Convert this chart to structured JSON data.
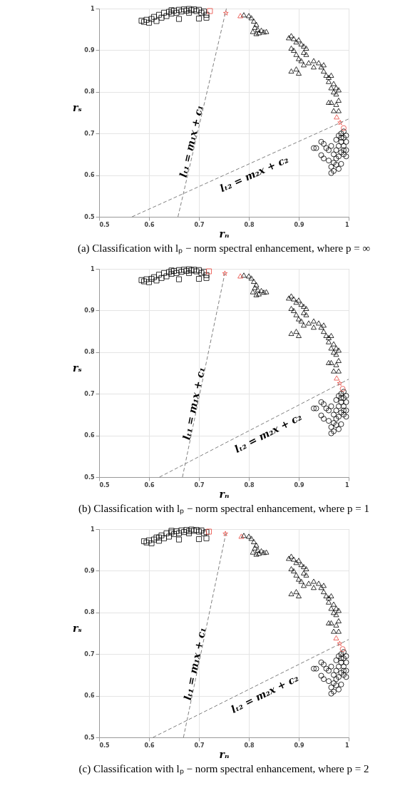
{
  "chart_data": [
    {
      "type": "scatter",
      "title": "(a) Classification with lₚ − norm spectral enhancement, where p = ∞",
      "xlabel": "rₙ",
      "ylabel": "rₛ",
      "xlim": [
        0.5,
        1
      ],
      "ylim": [
        0.5,
        1
      ],
      "xticks": [
        0.5,
        0.6,
        0.7,
        0.8,
        0.9,
        1
      ],
      "yticks": [
        0.5,
        0.6,
        0.7,
        0.8,
        0.9,
        1
      ],
      "grid": true,
      "annotations": [
        "lₜ₁ = m₁x + c₁",
        "lₜ₂ = m₂x + c₂"
      ],
      "series": [
        {
          "type": "scatter",
          "marker": "square",
          "color": "#000000",
          "x": [
            0.585,
            0.59,
            0.595,
            0.6,
            0.605,
            0.61,
            0.615,
            0.62,
            0.625,
            0.63,
            0.635,
            0.64,
            0.645,
            0.65,
            0.655,
            0.66,
            0.665,
            0.67,
            0.675,
            0.68,
            0.685,
            0.69,
            0.695,
            0.7,
            0.705,
            0.71,
            0.715,
            0.66,
            0.7,
            0.715,
            0.68,
            0.645
          ],
          "values": [
            0.971,
            0.968,
            0.973,
            0.966,
            0.975,
            0.98,
            0.97,
            0.985,
            0.978,
            0.99,
            0.982,
            0.992,
            0.988,
            0.995,
            0.99,
            0.997,
            0.993,
            0.998,
            0.995,
            0.999,
            0.996,
            0.998,
            0.994,
            0.997,
            0.99,
            0.993,
            0.985,
            0.975,
            0.976,
            0.978,
            0.99,
            0.996
          ]
        },
        {
          "type": "scatter",
          "marker": "triangle",
          "color": "#000000",
          "x": [
            0.79,
            0.8,
            0.805,
            0.81,
            0.815,
            0.812,
            0.818,
            0.808,
            0.82,
            0.825,
            0.83,
            0.835,
            0.815,
            0.88,
            0.885,
            0.89,
            0.895,
            0.9,
            0.905,
            0.91,
            0.915,
            0.885,
            0.89,
            0.895,
            0.9,
            0.905,
            0.91,
            0.915,
            0.885,
            0.895,
            0.9,
            0.91,
            0.92,
            0.93,
            0.94,
            0.945,
            0.95,
            0.955,
            0.96,
            0.965,
            0.96,
            0.97,
            0.965,
            0.975,
            0.97,
            0.98,
            0.975,
            0.96,
            0.965,
            0.975,
            0.98,
            0.97,
            0.98,
            0.93,
            0.95
          ],
          "values": [
            0.985,
            0.983,
            0.978,
            0.97,
            0.962,
            0.955,
            0.95,
            0.945,
            0.942,
            0.948,
            0.944,
            0.945,
            0.94,
            0.93,
            0.935,
            0.928,
            0.92,
            0.925,
            0.915,
            0.91,
            0.905,
            0.905,
            0.9,
            0.89,
            0.88,
            0.875,
            0.895,
            0.89,
            0.85,
            0.855,
            0.845,
            0.865,
            0.87,
            0.875,
            0.87,
            0.86,
            0.85,
            0.84,
            0.835,
            0.84,
            0.825,
            0.82,
            0.81,
            0.81,
            0.8,
            0.805,
            0.795,
            0.775,
            0.775,
            0.77,
            0.78,
            0.755,
            0.755,
            0.86,
            0.865
          ]
        },
        {
          "type": "scatter",
          "marker": "circle",
          "color": "#000000",
          "x": [
            0.93,
            0.935,
            0.945,
            0.95,
            0.955,
            0.945,
            0.95,
            0.96,
            0.96,
            0.965,
            0.965,
            0.97,
            0.97,
            0.975,
            0.975,
            0.98,
            0.985,
            0.97,
            0.975,
            0.98,
            0.985,
            0.99,
            0.985,
            0.99,
            0.995,
            0.995,
            0.99,
            0.995,
            0.99,
            0.985,
            0.98,
            0.995,
            0.985,
            0.975,
            0.98,
            0.99,
            0.965
          ],
          "values": [
            0.665,
            0.665,
            0.68,
            0.675,
            0.665,
            0.648,
            0.64,
            0.66,
            0.635,
            0.62,
            0.605,
            0.63,
            0.61,
            0.625,
            0.64,
            0.615,
            0.627,
            0.65,
            0.66,
            0.67,
            0.68,
            0.69,
            0.7,
            0.705,
            0.695,
            0.68,
            0.67,
            0.66,
            0.65,
            0.655,
            0.645,
            0.645,
            0.69,
            0.685,
            0.695,
            0.66,
            0.67
          ]
        },
        {
          "type": "scatter",
          "marker": "square",
          "color": "#e8453c",
          "x": [
            0.722
          ],
          "values": [
            0.994
          ]
        },
        {
          "type": "scatter",
          "marker": "star",
          "color": "#e8453c",
          "x": [
            0.754,
            0.983
          ],
          "values": [
            0.989,
            0.726
          ]
        },
        {
          "type": "scatter",
          "marker": "triangle",
          "color": "#e8453c",
          "x": [
            0.783,
            0.976
          ],
          "values": [
            0.983,
            0.74
          ]
        },
        {
          "type": "scatter",
          "marker": "circle",
          "color": "#e8453c",
          "x": [
            0.99
          ],
          "values": [
            0.713
          ]
        },
        {
          "type": "line",
          "line_style": "dashed",
          "color": "#808080",
          "x": [
            0.658,
            0.755
          ],
          "values": [
            0.5,
            1
          ]
        },
        {
          "type": "line",
          "line_style": "dashed",
          "color": "#808080",
          "x": [
            0.566,
            1
          ],
          "values": [
            0.5,
            0.735
          ]
        }
      ]
    },
    {
      "type": "scatter",
      "title": "(b) Classification with lₚ − norm spectral enhancement, where p = 1",
      "xlabel": "rₙ",
      "ylabel": "rₛ",
      "xlim": [
        0.5,
        1
      ],
      "ylim": [
        0.5,
        1
      ],
      "xticks": [
        0.5,
        0.6,
        0.7,
        0.8,
        0.9,
        1
      ],
      "yticks": [
        0.5,
        0.6,
        0.7,
        0.8,
        0.9,
        1
      ],
      "grid": true,
      "annotations": [
        "lₜ₁ = m₁x + c₁",
        "lₜ₂ = m₂x + c₂"
      ],
      "series": [
        {
          "type": "scatter",
          "marker": "square",
          "color": "#000000",
          "x": [
            0.585,
            0.59,
            0.595,
            0.6,
            0.605,
            0.61,
            0.615,
            0.62,
            0.625,
            0.63,
            0.635,
            0.64,
            0.645,
            0.65,
            0.655,
            0.66,
            0.665,
            0.67,
            0.675,
            0.68,
            0.685,
            0.69,
            0.695,
            0.7,
            0.705,
            0.71,
            0.715,
            0.66,
            0.7,
            0.715,
            0.68,
            0.645
          ],
          "values": [
            0.973,
            0.97,
            0.975,
            0.968,
            0.976,
            0.98,
            0.972,
            0.986,
            0.978,
            0.99,
            0.982,
            0.992,
            0.988,
            0.995,
            0.99,
            0.997,
            0.993,
            0.998,
            0.995,
            0.999,
            0.996,
            0.998,
            0.994,
            0.997,
            0.99,
            0.993,
            0.985,
            0.975,
            0.976,
            0.978,
            0.99,
            0.996
          ]
        },
        {
          "type": "scatter",
          "marker": "triangle",
          "color": "#000000",
          "x": [
            0.79,
            0.8,
            0.805,
            0.81,
            0.815,
            0.812,
            0.818,
            0.808,
            0.82,
            0.825,
            0.83,
            0.835,
            0.815,
            0.88,
            0.885,
            0.89,
            0.895,
            0.9,
            0.905,
            0.91,
            0.915,
            0.885,
            0.89,
            0.895,
            0.9,
            0.905,
            0.91,
            0.915,
            0.885,
            0.895,
            0.9,
            0.91,
            0.92,
            0.93,
            0.94,
            0.945,
            0.95,
            0.955,
            0.96,
            0.965,
            0.96,
            0.97,
            0.965,
            0.975,
            0.97,
            0.98,
            0.975,
            0.96,
            0.965,
            0.975,
            0.98,
            0.97,
            0.98,
            0.93,
            0.95
          ],
          "values": [
            0.985,
            0.983,
            0.978,
            0.97,
            0.962,
            0.955,
            0.95,
            0.945,
            0.94,
            0.948,
            0.944,
            0.945,
            0.938,
            0.93,
            0.935,
            0.928,
            0.92,
            0.925,
            0.915,
            0.91,
            0.905,
            0.905,
            0.9,
            0.89,
            0.88,
            0.875,
            0.895,
            0.89,
            0.845,
            0.85,
            0.84,
            0.865,
            0.87,
            0.875,
            0.87,
            0.86,
            0.85,
            0.84,
            0.835,
            0.84,
            0.825,
            0.82,
            0.81,
            0.81,
            0.8,
            0.805,
            0.795,
            0.775,
            0.775,
            0.77,
            0.78,
            0.755,
            0.755,
            0.86,
            0.865
          ]
        },
        {
          "type": "scatter",
          "marker": "circle",
          "color": "#000000",
          "x": [
            0.93,
            0.935,
            0.945,
            0.95,
            0.955,
            0.945,
            0.95,
            0.96,
            0.96,
            0.965,
            0.965,
            0.97,
            0.97,
            0.975,
            0.975,
            0.98,
            0.985,
            0.97,
            0.975,
            0.98,
            0.985,
            0.99,
            0.985,
            0.99,
            0.995,
            0.995,
            0.99,
            0.995,
            0.99,
            0.985,
            0.98,
            0.995,
            0.985,
            0.975,
            0.98,
            0.99,
            0.965
          ],
          "values": [
            0.665,
            0.665,
            0.68,
            0.675,
            0.665,
            0.648,
            0.64,
            0.66,
            0.635,
            0.62,
            0.605,
            0.63,
            0.61,
            0.625,
            0.64,
            0.615,
            0.627,
            0.65,
            0.66,
            0.67,
            0.68,
            0.69,
            0.7,
            0.705,
            0.695,
            0.68,
            0.67,
            0.66,
            0.65,
            0.655,
            0.645,
            0.645,
            0.69,
            0.685,
            0.695,
            0.66,
            0.67
          ]
        },
        {
          "type": "scatter",
          "marker": "square",
          "color": "#e8453c",
          "x": [
            0.72
          ],
          "values": [
            0.994
          ]
        },
        {
          "type": "scatter",
          "marker": "star",
          "color": "#e8453c",
          "x": [
            0.752,
            0.982
          ],
          "values": [
            0.989,
            0.725
          ]
        },
        {
          "type": "scatter",
          "marker": "triangle",
          "color": "#e8453c",
          "x": [
            0.783,
            0.976
          ],
          "values": [
            0.983,
            0.738
          ]
        },
        {
          "type": "scatter",
          "marker": "circle",
          "color": "#e8453c",
          "x": [
            0.988
          ],
          "values": [
            0.712
          ]
        },
        {
          "type": "line",
          "line_style": "dashed",
          "color": "#808080",
          "x": [
            0.667,
            0.752
          ],
          "values": [
            0.5,
            0.99
          ]
        },
        {
          "type": "line",
          "line_style": "dashed",
          "color": "#808080",
          "x": [
            0.621,
            1
          ],
          "values": [
            0.5,
            0.735
          ]
        }
      ]
    },
    {
      "type": "scatter",
      "title": "(c) Classification with lₚ − norm spectral enhancement, where p = 2",
      "xlabel": "rₙ",
      "ylabel": "rₛ",
      "xlim": [
        0.5,
        1
      ],
      "ylim": [
        0.5,
        1
      ],
      "xticks": [
        0.5,
        0.6,
        0.7,
        0.8,
        0.9,
        1
      ],
      "yticks": [
        0.5,
        0.6,
        0.7,
        0.8,
        0.9,
        1
      ],
      "grid": true,
      "annotations": [
        "lₜ₁ = m₁x + c₁",
        "lₜ₂ = m₂x + c₂"
      ],
      "series": [
        {
          "type": "scatter",
          "marker": "square",
          "color": "#000000",
          "x": [
            0.59,
            0.595,
            0.6,
            0.605,
            0.61,
            0.615,
            0.62,
            0.625,
            0.63,
            0.635,
            0.64,
            0.645,
            0.65,
            0.655,
            0.66,
            0.665,
            0.67,
            0.675,
            0.68,
            0.685,
            0.69,
            0.695,
            0.7,
            0.705,
            0.71,
            0.715,
            0.66,
            0.7,
            0.715,
            0.68,
            0.645,
            0.62
          ],
          "values": [
            0.971,
            0.968,
            0.973,
            0.966,
            0.975,
            0.98,
            0.972,
            0.985,
            0.978,
            0.99,
            0.982,
            0.992,
            0.988,
            0.995,
            0.99,
            0.997,
            0.993,
            0.998,
            0.995,
            0.999,
            0.996,
            0.998,
            0.994,
            0.997,
            0.99,
            0.993,
            0.975,
            0.976,
            0.978,
            0.99,
            0.996,
            0.98
          ]
        },
        {
          "type": "scatter",
          "marker": "triangle",
          "color": "#000000",
          "x": [
            0.79,
            0.8,
            0.805,
            0.81,
            0.815,
            0.812,
            0.818,
            0.808,
            0.82,
            0.825,
            0.83,
            0.835,
            0.815,
            0.88,
            0.885,
            0.89,
            0.895,
            0.9,
            0.905,
            0.91,
            0.915,
            0.885,
            0.89,
            0.895,
            0.9,
            0.905,
            0.91,
            0.915,
            0.885,
            0.895,
            0.9,
            0.91,
            0.92,
            0.93,
            0.94,
            0.945,
            0.95,
            0.955,
            0.96,
            0.965,
            0.96,
            0.97,
            0.965,
            0.975,
            0.97,
            0.98,
            0.975,
            0.96,
            0.965,
            0.975,
            0.98,
            0.97,
            0.98,
            0.93,
            0.95
          ],
          "values": [
            0.985,
            0.983,
            0.978,
            0.97,
            0.962,
            0.955,
            0.95,
            0.945,
            0.942,
            0.948,
            0.944,
            0.945,
            0.94,
            0.93,
            0.935,
            0.928,
            0.92,
            0.925,
            0.915,
            0.91,
            0.905,
            0.905,
            0.9,
            0.89,
            0.88,
            0.875,
            0.895,
            0.89,
            0.845,
            0.85,
            0.84,
            0.865,
            0.87,
            0.875,
            0.87,
            0.86,
            0.85,
            0.84,
            0.835,
            0.84,
            0.825,
            0.82,
            0.81,
            0.81,
            0.8,
            0.805,
            0.795,
            0.775,
            0.775,
            0.77,
            0.78,
            0.755,
            0.755,
            0.86,
            0.865
          ]
        },
        {
          "type": "scatter",
          "marker": "circle",
          "color": "#000000",
          "x": [
            0.93,
            0.935,
            0.945,
            0.95,
            0.955,
            0.945,
            0.95,
            0.96,
            0.96,
            0.965,
            0.965,
            0.97,
            0.97,
            0.975,
            0.975,
            0.98,
            0.985,
            0.97,
            0.975,
            0.98,
            0.985,
            0.99,
            0.985,
            0.99,
            0.995,
            0.995,
            0.99,
            0.995,
            0.99,
            0.985,
            0.98,
            0.995,
            0.985,
            0.975,
            0.98,
            0.99,
            0.965
          ],
          "values": [
            0.665,
            0.665,
            0.68,
            0.675,
            0.665,
            0.648,
            0.64,
            0.66,
            0.635,
            0.62,
            0.605,
            0.63,
            0.61,
            0.625,
            0.64,
            0.615,
            0.627,
            0.65,
            0.66,
            0.67,
            0.68,
            0.69,
            0.7,
            0.705,
            0.695,
            0.68,
            0.67,
            0.66,
            0.65,
            0.655,
            0.645,
            0.645,
            0.69,
            0.685,
            0.695,
            0.66,
            0.67
          ]
        },
        {
          "type": "scatter",
          "marker": "square",
          "color": "#e8453c",
          "x": [
            0.72
          ],
          "values": [
            0.994
          ]
        },
        {
          "type": "scatter",
          "marker": "star",
          "color": "#e8453c",
          "x": [
            0.753,
            0.982
          ],
          "values": [
            0.989,
            0.725
          ]
        },
        {
          "type": "scatter",
          "marker": "triangle",
          "color": "#e8453c",
          "x": [
            0.785,
            0.975
          ],
          "values": [
            0.983,
            0.739
          ]
        },
        {
          "type": "scatter",
          "marker": "circle",
          "color": "#e8453c",
          "x": [
            0.988
          ],
          "values": [
            0.712
          ]
        },
        {
          "type": "line",
          "line_style": "dashed",
          "color": "#808080",
          "x": [
            0.669,
            0.754
          ],
          "values": [
            0.5,
            0.99
          ]
        },
        {
          "type": "line",
          "line_style": "dashed",
          "color": "#808080",
          "x": [
            0.608,
            1
          ],
          "values": [
            0.5,
            0.735
          ]
        }
      ]
    }
  ]
}
